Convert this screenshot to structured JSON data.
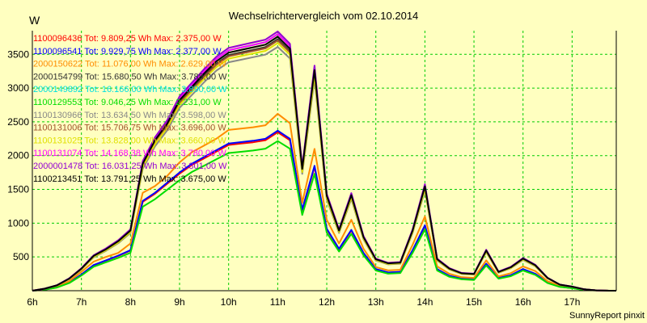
{
  "chart_data": {
    "type": "line",
    "title": "Wechselrichtervergleich vom 02.10.2014",
    "ylabel": "W",
    "footer": "SunnyReport pinxit",
    "x_ticks": [
      "6h",
      "7h",
      "8h",
      "9h",
      "10h",
      "11h",
      "12h",
      "13h",
      "14h",
      "15h",
      "16h",
      "17h"
    ],
    "y_ticks": [
      500,
      1000,
      1500,
      2000,
      2500,
      3000,
      3500
    ],
    "xlim": [
      6.0,
      17.9
    ],
    "ylim": [
      0,
      3850
    ],
    "grid": true,
    "legend_position": "top-left",
    "series": [
      {
        "name": "1100096436",
        "legend": "1100096436 Tot: 9.809,25 Wh Max: 2.375,00 W",
        "color": "#ff0000",
        "group": "low",
        "scale": 0.99
      },
      {
        "name": "1100096541",
        "legend": "1100096541 Tot: 9.929,75 Wh Max: 2.377,00 W",
        "color": "#0000ff",
        "group": "low",
        "scale": 1.0
      },
      {
        "name": "2000150622",
        "legend": "2000150622 Tot: 11.076,00 Wh Max: 2.629,00 W",
        "color": "#ff8c00",
        "group": "mid",
        "scale": 1.0
      },
      {
        "name": "2000154799",
        "legend": "2000154799 Tot: 15.680,50 Wh Max: 3.788,00 W",
        "color": "#333333",
        "group": "high",
        "scale": 0.98
      },
      {
        "name": "2000149892",
        "legend": "2000149892 Tot: 16.166,00 Wh Max: 3.890,00 W",
        "color": "#00e0e0",
        "group": "high",
        "scale": 1.0
      },
      {
        "name": "1100129553",
        "legend": "1100129553 Tot: 9.046,25 Wh Max: 2.231,00 W",
        "color": "#00dd00",
        "group": "low",
        "scale": 0.935
      },
      {
        "name": "1100130966",
        "legend": "1100130966 Tot: 13.634,50 Wh Max: 3.598,00 W",
        "color": "#888888",
        "group": "high",
        "scale": 0.95
      },
      {
        "name": "1100131006",
        "legend": "1100131006 Tot: 15.706,75 Wh Max: 3.696,00 W",
        "color": "#a0522d",
        "group": "high",
        "scale": 0.975
      },
      {
        "name": "1100131025",
        "legend": "1100131025 Tot: 13.828,00 Wh Max: 3.660,00 W",
        "color": "#e0e000",
        "group": "high",
        "scale": 0.965
      },
      {
        "name": "1100131074",
        "legend": "1100131074 Tot: 14.168,38 Wh Max: 3.780,00 W",
        "color": "#ff00ff",
        "group": "high",
        "scale": 1.0
      },
      {
        "name": "2000001478",
        "legend": "2000001478 Tot: 16.031,25 Wh Max: 3.801,00 W",
        "color": "#9400d3",
        "group": "high",
        "scale": 1.01
      },
      {
        "name": "1100213451",
        "legend": "1100213451 Tot: 13.791,25 Wh Max: 3.675,00 W",
        "color": "#000000",
        "group": "high",
        "scale": 0.99
      }
    ],
    "x": [
      6.0,
      6.25,
      6.5,
      6.75,
      7.0,
      7.25,
      7.5,
      7.75,
      8.0,
      8.25,
      8.5,
      8.75,
      9.0,
      9.25,
      9.5,
      9.75,
      10.0,
      10.25,
      10.5,
      10.75,
      11.0,
      11.25,
      11.5,
      11.75,
      12.0,
      12.25,
      12.5,
      12.75,
      13.0,
      13.25,
      13.5,
      13.75,
      14.0,
      14.25,
      14.5,
      14.75,
      15.0,
      15.25,
      15.5,
      15.75,
      16.0,
      16.25,
      16.5,
      16.75,
      17.0,
      17.25,
      17.5,
      17.75,
      17.9
    ],
    "profiles": {
      "high": [
        0,
        30,
        80,
        180,
        330,
        520,
        620,
        740,
        900,
        1900,
        2250,
        2500,
        2850,
        3050,
        3250,
        3430,
        3560,
        3600,
        3640,
        3680,
        3800,
        3620,
        1820,
        3300,
        1420,
        900,
        1430,
        800,
        470,
        410,
        420,
        900,
        1560,
        470,
        330,
        260,
        250,
        600,
        280,
        350,
        480,
        380,
        190,
        90,
        60,
        20,
        5,
        0,
        0
      ],
      "mid": [
        0,
        20,
        60,
        140,
        280,
        430,
        500,
        560,
        700,
        1450,
        1550,
        1700,
        1900,
        2050,
        2150,
        2250,
        2380,
        2400,
        2420,
        2450,
        2620,
        2480,
        1300,
        2100,
        1050,
        700,
        1050,
        620,
        350,
        300,
        310,
        680,
        1100,
        360,
        250,
        200,
        190,
        450,
        210,
        260,
        360,
        290,
        140,
        70,
        45,
        15,
        5,
        0,
        0
      ],
      "low": [
        0,
        15,
        50,
        120,
        240,
        380,
        450,
        520,
        600,
        1330,
        1450,
        1600,
        1750,
        1880,
        1980,
        2080,
        2180,
        2200,
        2220,
        2250,
        2370,
        2250,
        1200,
        1850,
        920,
        620,
        900,
        560,
        320,
        270,
        280,
        600,
        970,
        320,
        220,
        180,
        170,
        400,
        190,
        230,
        320,
        250,
        120,
        60,
        40,
        10,
        5,
        0,
        0
      ]
    }
  }
}
